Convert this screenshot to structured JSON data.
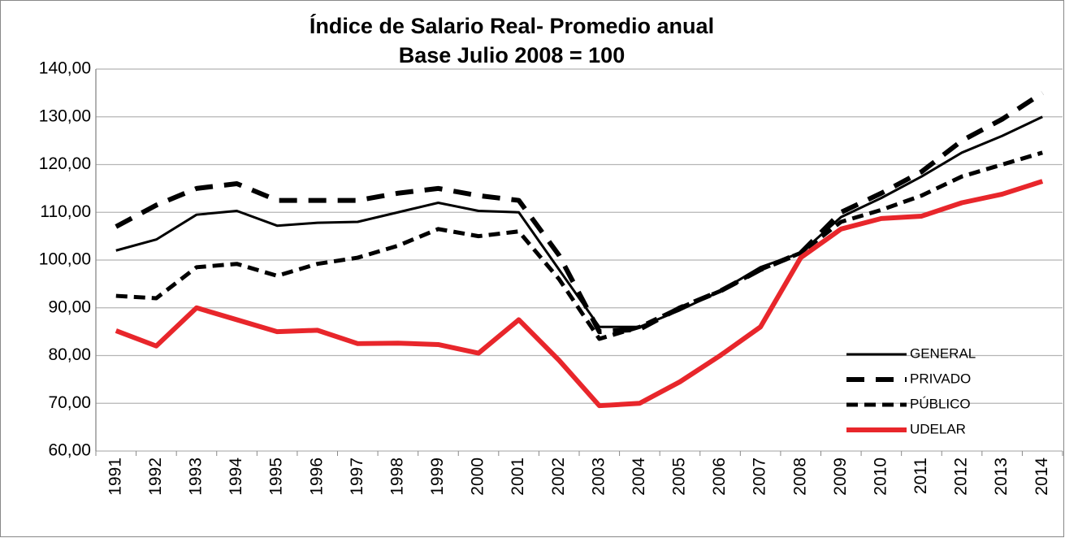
{
  "chart_data": {
    "type": "line",
    "title": "Índice de Salario Real- Promedio anual",
    "subtitle": "Base Julio 2008 = 100",
    "categories": [
      "1991",
      "1992",
      "1993",
      "1994",
      "1995",
      "1996",
      "1997",
      "1998",
      "1999",
      "2000",
      "2001",
      "2002",
      "2003",
      "2004",
      "2005",
      "2006",
      "2007",
      "2008",
      "2009",
      "2010",
      "2011",
      "2012",
      "2013",
      "2014"
    ],
    "series": [
      {
        "name": "GENERAL",
        "color": "#000000",
        "dash": "none",
        "width": 3,
        "values": [
          102,
          104.3,
          109.5,
          110.3,
          107.2,
          107.8,
          108,
          110,
          112,
          110.3,
          110,
          98,
          86,
          86,
          89.5,
          93.5,
          98.5,
          101.5,
          109,
          113,
          117.5,
          122.5,
          126,
          130
        ]
      },
      {
        "name": "PRIVADO",
        "color": "#000000",
        "dash": "22 14",
        "width": 6,
        "values": [
          107,
          111.5,
          115,
          116,
          112.5,
          112.5,
          112.5,
          114,
          115,
          113.5,
          112.5,
          101,
          85,
          85.5,
          90,
          93.5,
          98,
          101.5,
          110,
          114,
          118.5,
          125,
          129.5,
          135
        ]
      },
      {
        "name": "PÚBLICO",
        "color": "#000000",
        "dash": "14 8",
        "width": 5,
        "values": [
          92.5,
          92,
          98.5,
          99.2,
          96.7,
          99.2,
          100.5,
          103,
          106.5,
          105,
          106,
          96,
          83.5,
          86,
          90,
          93.5,
          98,
          101.5,
          108,
          110.5,
          113.5,
          117.5,
          120,
          122.5
        ]
      },
      {
        "name": "UDELAR",
        "color": "#e8262b",
        "dash": "none",
        "width": 6,
        "values": [
          85.2,
          82,
          90,
          87.5,
          85,
          85.3,
          82.5,
          82.6,
          82.3,
          80.5,
          87.5,
          79,
          69.5,
          70,
          74.5,
          80,
          86,
          100.5,
          106.5,
          108.7,
          109.2,
          112,
          113.8,
          116.5
        ]
      }
    ],
    "ylim": [
      60,
      140
    ],
    "yticks": [
      {
        "value": 60,
        "label": "60,00"
      },
      {
        "value": 70,
        "label": "70,00"
      },
      {
        "value": 80,
        "label": "80,00"
      },
      {
        "value": 90,
        "label": "90,00"
      },
      {
        "value": 100,
        "label": "100,00"
      },
      {
        "value": 110,
        "label": "110,00"
      },
      {
        "value": 120,
        "label": "120,00"
      },
      {
        "value": 130,
        "label": "130,00"
      },
      {
        "value": 140,
        "label": "140,00"
      }
    ],
    "grid": true,
    "legend": "lower right"
  }
}
